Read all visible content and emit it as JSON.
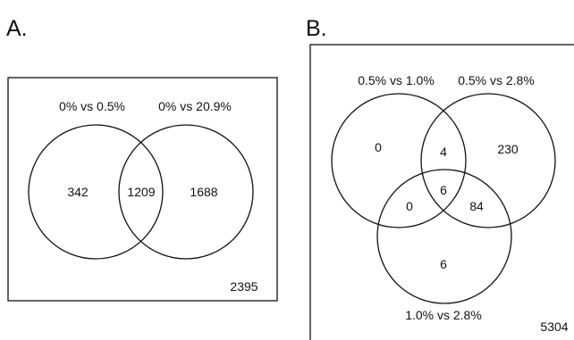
{
  "panel_a": {
    "letter": "A.",
    "set_labels": [
      "0% vs 0.5%",
      "0% vs 20.9%"
    ],
    "counts": {
      "left_only": "342",
      "intersection": "1209",
      "right_only": "1688",
      "outside": "2395"
    }
  },
  "panel_b": {
    "letter": "B.",
    "set_labels": [
      "0.5% vs 1.0%",
      "0.5% vs 2.8%",
      "1.0% vs 2.8%"
    ],
    "counts": {
      "left_only": "0",
      "right_only": "230",
      "bottom_only": "6",
      "left_right": "4",
      "left_bottom": "0",
      "right_bottom": "84",
      "all_three": "6",
      "outside": "5304"
    }
  },
  "colors": {
    "stroke": "#111111",
    "background": "#ffffff"
  }
}
